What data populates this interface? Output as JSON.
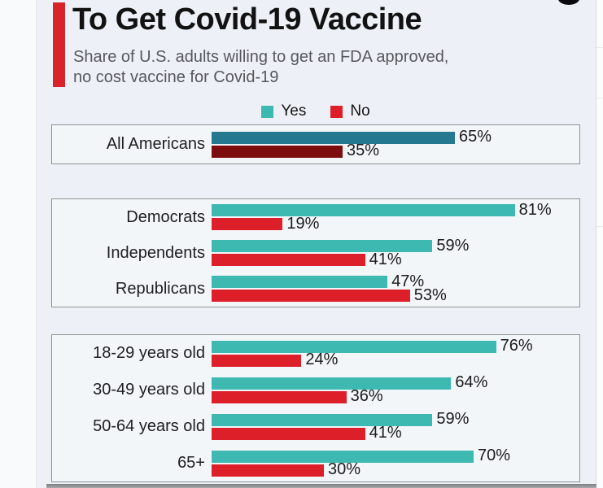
{
  "header": {
    "title": "To Get Covid-19 Vaccine",
    "subtitle_line1": "Share of U.S. adults willing to get an FDA approved,",
    "subtitle_line2": "no cost vaccine for Covid-19"
  },
  "legend": {
    "yes": "Yes",
    "no": "No"
  },
  "colors": {
    "accent_red": "#d8232b",
    "yes": "#3db9b2",
    "no": "#dd1f2a",
    "yes_emphasis": "#24788f",
    "no_emphasis": "#7d0c0e"
  },
  "chart_data": {
    "type": "bar",
    "orientation": "horizontal",
    "title": "To Get Covid-19 Vaccine",
    "subtitle": "Share of U.S. adults willing to get an FDA approved, no cost vaccine for Covid-19",
    "series_names": [
      "Yes",
      "No"
    ],
    "value_suffix": "%",
    "xlim": [
      0,
      100
    ],
    "legend_position": "top-center",
    "groups": [
      {
        "id": "all-americans",
        "emphasis": true,
        "rows": [
          {
            "label": "All Americans",
            "yes": 65,
            "no": 35
          }
        ]
      },
      {
        "id": "party-affiliation",
        "emphasis": false,
        "rows": [
          {
            "label": "Democrats",
            "yes": 81,
            "no": 19
          },
          {
            "label": "Independents",
            "yes": 59,
            "no": 41
          },
          {
            "label": "Republicans",
            "yes": 47,
            "no": 53
          }
        ]
      },
      {
        "id": "age-groups",
        "emphasis": false,
        "rows": [
          {
            "label": "18-29 years old",
            "yes": 76,
            "no": 24
          },
          {
            "label": "30-49 years old",
            "yes": 64,
            "no": 36
          },
          {
            "label": "50-64 years old",
            "yes": 59,
            "no": 41
          },
          {
            "label": "65+",
            "yes": 70,
            "no": 30
          }
        ]
      }
    ]
  }
}
